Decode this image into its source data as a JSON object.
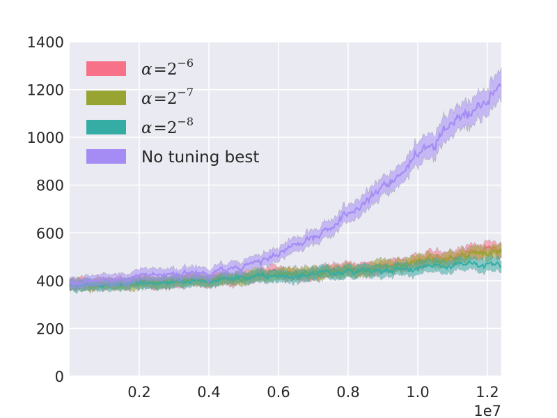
{
  "chart_data": {
    "type": "line",
    "title": "",
    "xlabel": "",
    "ylabel": "",
    "x_offset_label": "1e7",
    "xlim": [
      0,
      12400000
    ],
    "ylim": [
      0,
      1400
    ],
    "x_ticks": [
      2000000,
      4000000,
      6000000,
      8000000,
      10000000,
      12000000
    ],
    "x_tick_labels": [
      "0.2",
      "0.4",
      "0.6",
      "0.8",
      "1.0",
      "1.2"
    ],
    "y_ticks": [
      0,
      200,
      400,
      600,
      800,
      1000,
      1200,
      1400
    ],
    "y_tick_labels": [
      "0",
      "200",
      "400",
      "600",
      "800",
      "1000",
      "1200",
      "1400"
    ],
    "grid": true,
    "legend_position": "top-left",
    "x": [
      0,
      500000,
      1000000,
      1500000,
      2000000,
      2500000,
      3000000,
      3500000,
      4000000,
      4500000,
      5000000,
      5500000,
      6000000,
      6500000,
      7000000,
      7500000,
      8000000,
      8500000,
      9000000,
      9500000,
      10000000,
      10500000,
      11000000,
      11500000,
      12000000,
      12400000
    ],
    "series": [
      {
        "name": "α = 2⁻⁶",
        "legend_base": "α = 2",
        "legend_exp": "−6",
        "color": "#f77189",
        "values": [
          390,
          385,
          388,
          390,
          392,
          395,
          398,
          402,
          405,
          410,
          415,
          420,
          425,
          430,
          435,
          440,
          445,
          450,
          460,
          470,
          480,
          490,
          500,
          515,
          530,
          540
        ]
      },
      {
        "name": "α = 2⁻⁷",
        "legend_base": "α = 2",
        "legend_exp": "−7",
        "color": "#97a431",
        "values": [
          385,
          380,
          385,
          387,
          390,
          393,
          396,
          400,
          403,
          408,
          413,
          418,
          422,
          428,
          433,
          438,
          443,
          448,
          455,
          465,
          475,
          485,
          495,
          505,
          515,
          525
        ]
      },
      {
        "name": "α = 2⁻⁸",
        "legend_base": "α = 2",
        "legend_exp": "−8",
        "color": "#36ada4",
        "values": [
          385,
          378,
          383,
          386,
          388,
          391,
          394,
          398,
          400,
          405,
          410,
          414,
          418,
          422,
          426,
          430,
          434,
          438,
          442,
          446,
          450,
          455,
          460,
          465,
          468,
          470
        ]
      },
      {
        "name": "No tuning best",
        "color": "#a48cf4",
        "values": [
          390,
          395,
          405,
          410,
          420,
          425,
          425,
          430,
          430,
          440,
          460,
          480,
          510,
          545,
          580,
          625,
          680,
          730,
          790,
          850,
          930,
          990,
          1040,
          1100,
          1150,
          1240
        ]
      }
    ]
  }
}
